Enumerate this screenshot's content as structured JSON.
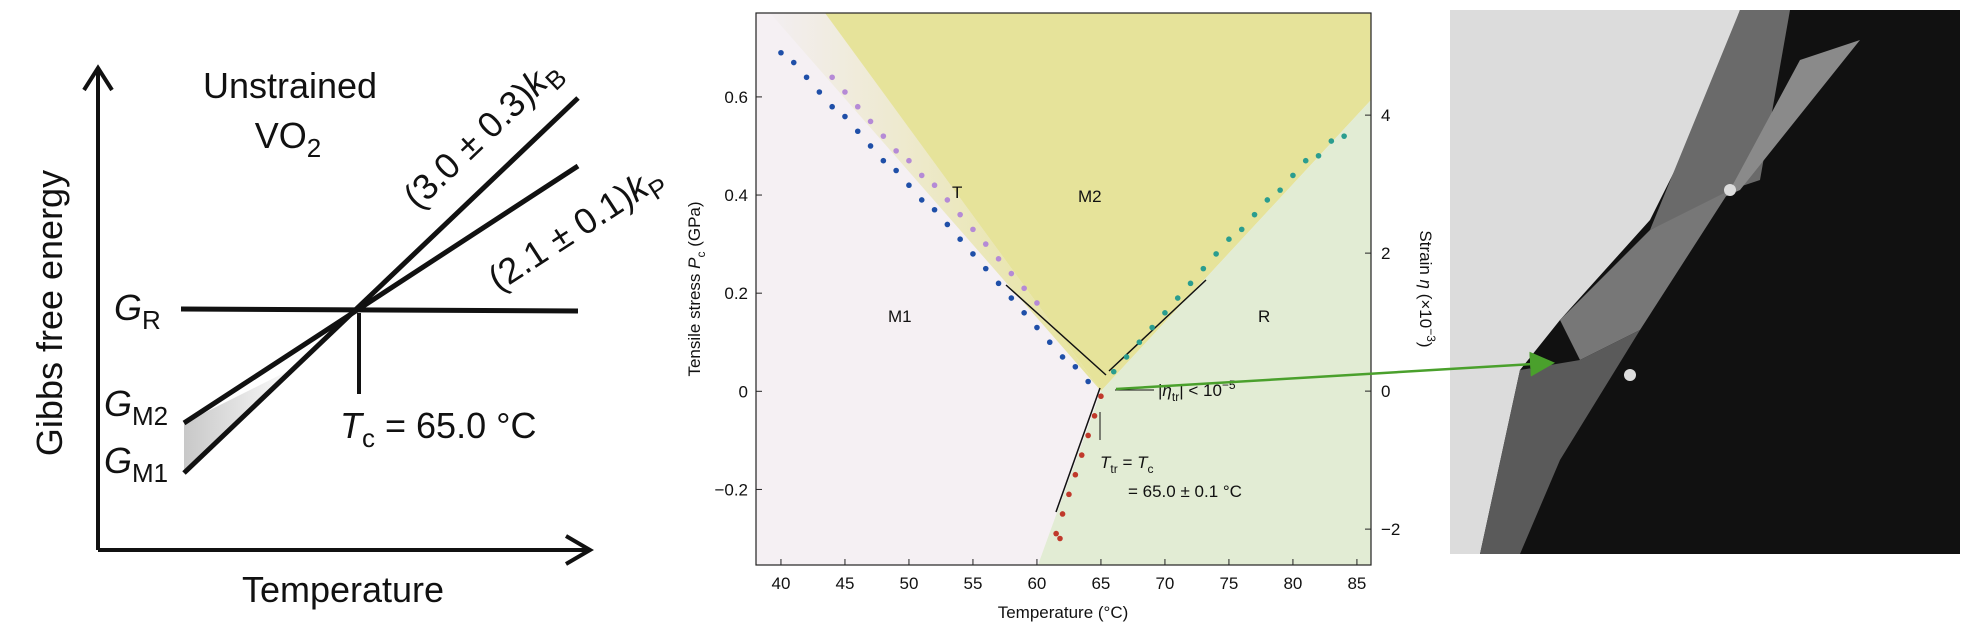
{
  "schematic": {
    "heading": {
      "line1": "Unstrained",
      "line2": "VO",
      "line2_sub": "2"
    },
    "slope_b": {
      "text": "(3.0 ± 0.3)",
      "k": "k",
      "sub": "B"
    },
    "slope_p": {
      "text": "(2.1 ± 0.1)",
      "k": "k",
      "sub": "P"
    },
    "y_label": "Gibbs free energy",
    "x_label": "Temperature",
    "curves": [
      {
        "main": "G",
        "sub": "R"
      },
      {
        "main": "G",
        "sub": "M2"
      },
      {
        "main": "G",
        "sub": "M1"
      }
    ],
    "tc": {
      "main": "T",
      "sub": "c",
      "rest": " = 65.0 °C"
    }
  },
  "chart_data": {
    "type": "scatter",
    "xlabel": "Temperature (°C)",
    "ylabel": {
      "text": "Tensile stress ",
      "italic": "P",
      "sub": "c",
      "rest": " (GPa)"
    },
    "y2label": {
      "text": "Strain ",
      "italic": "η",
      "rest": " (×10",
      "sup": "−3",
      "end": ")"
    },
    "xlim": [
      38.05,
      86.1
    ],
    "xticks": [
      40,
      45,
      50,
      55,
      60,
      65,
      70,
      75,
      80,
      85
    ],
    "ylim": [
      -0.354,
      0.771
    ],
    "yticks": [
      {
        "value": -0.2,
        "label": "−0.2"
      },
      0,
      0.2,
      0.4,
      0.6
    ],
    "y2lim": [
      -2.52,
      5.48
    ],
    "y2ticks": [
      {
        "value": -2,
        "label": "−2"
      },
      0,
      2,
      4
    ],
    "regions": [
      "T",
      "M2",
      "M1",
      "R"
    ],
    "eta_note": {
      "open": "|",
      "eta": "η",
      "sub": "tr",
      "rest": "| < 10",
      "sup": "−5"
    },
    "ttr_note": {
      "t1": "T",
      "sub1": "tr",
      "mid": " = ",
      "t2": "T",
      "sub2": "c",
      "line2": "= 65.0 ± 0.1 °C"
    },
    "series": [
      {
        "color": "#1f4fa8",
        "x": [
          40,
          41,
          42,
          43,
          44,
          45,
          46,
          47,
          48,
          49,
          50,
          51,
          52,
          53,
          54,
          55,
          56,
          57,
          58,
          59,
          60,
          61,
          62,
          63,
          64
        ],
        "values": [
          0.69,
          0.67,
          0.64,
          0.61,
          0.58,
          0.56,
          0.53,
          0.5,
          0.47,
          0.45,
          0.42,
          0.39,
          0.37,
          0.34,
          0.31,
          0.28,
          0.25,
          0.22,
          0.19,
          0.16,
          0.13,
          0.1,
          0.07,
          0.05,
          0.02
        ]
      },
      {
        "color": "#b58ad6",
        "x": [
          44,
          45,
          46,
          47,
          48,
          49,
          50,
          51,
          52,
          53,
          54,
          55,
          56,
          57,
          58,
          59,
          60
        ],
        "values": [
          0.64,
          0.61,
          0.58,
          0.55,
          0.52,
          0.49,
          0.47,
          0.44,
          0.42,
          0.39,
          0.36,
          0.33,
          0.3,
          0.27,
          0.24,
          0.21,
          0.18
        ]
      },
      {
        "color": "#2a9d8f",
        "x": [
          66,
          67,
          68,
          69,
          70,
          71,
          72,
          73,
          74,
          75,
          76,
          77,
          78,
          79,
          80,
          81,
          82,
          83,
          84
        ],
        "values": [
          0.04,
          0.07,
          0.1,
          0.13,
          0.16,
          0.19,
          0.22,
          0.25,
          0.28,
          0.31,
          0.33,
          0.36,
          0.39,
          0.41,
          0.44,
          0.47,
          0.48,
          0.51,
          0.52
        ]
      },
      {
        "color": "#c0392b",
        "x": [
          65,
          64.5,
          64,
          63.5,
          63,
          62.5,
          62,
          61.5,
          61.8
        ],
        "values": [
          -0.01,
          -0.05,
          -0.09,
          -0.13,
          -0.17,
          -0.21,
          -0.25,
          -0.29,
          -0.3
        ]
      }
    ]
  }
}
